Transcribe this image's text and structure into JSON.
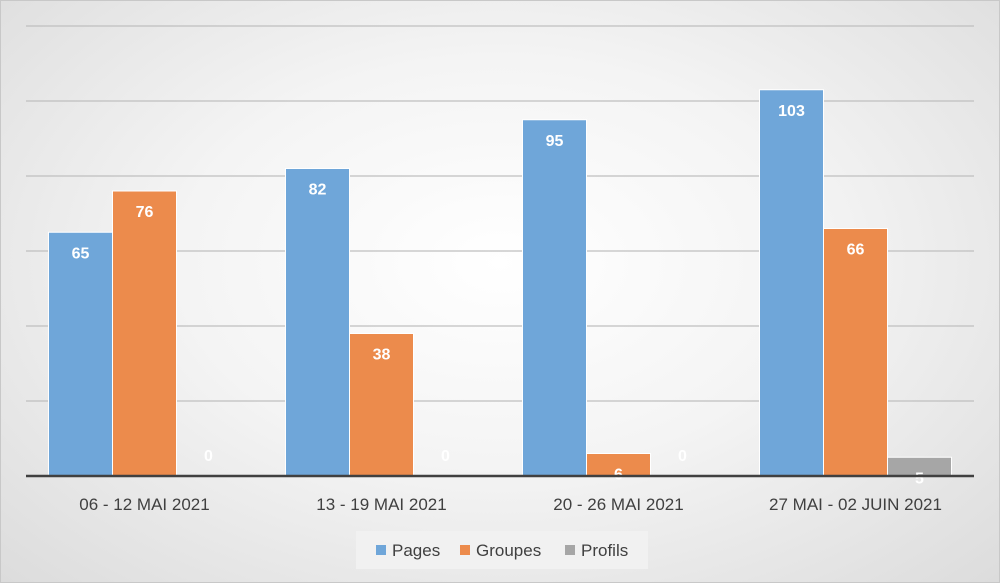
{
  "chart_data": {
    "type": "bar",
    "categories": [
      "06 - 12 MAI 2021",
      "13 - 19 MAI 2021",
      "20 - 26 MAI 2021",
      "27 MAI - 02 JUIN 2021"
    ],
    "series": [
      {
        "name": "Pages",
        "values": [
          65,
          82,
          95,
          103
        ],
        "color": "#6fa6d9"
      },
      {
        "name": "Groupes",
        "values": [
          76,
          38,
          6,
          66
        ],
        "color": "#ec8b4c"
      },
      {
        "name": "Profils",
        "values": [
          0,
          0,
          0,
          5
        ],
        "color": "#a6a6a6"
      }
    ],
    "title": "",
    "xlabel": "",
    "ylabel": "",
    "ylim": [
      0,
      120
    ],
    "grid": true,
    "legend": "bottom"
  }
}
